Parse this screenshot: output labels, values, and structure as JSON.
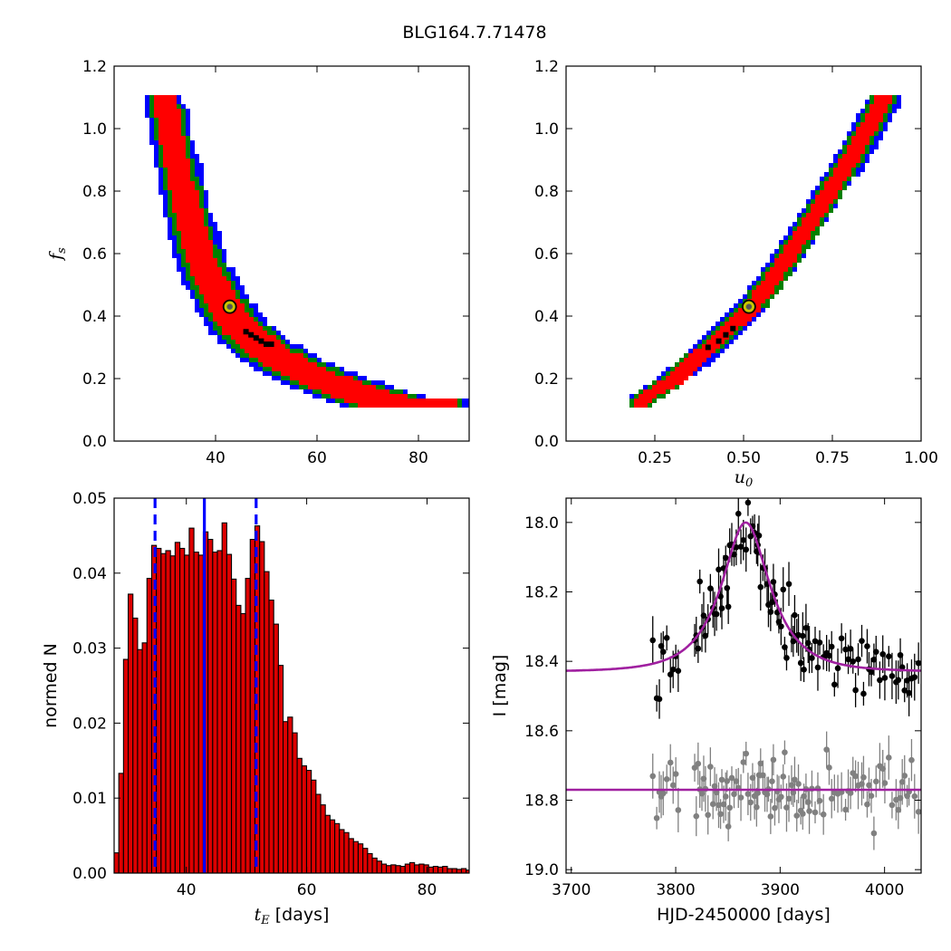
{
  "figure_title": "BLG164.7.71478",
  "colors": {
    "blue": "#0000ff",
    "green": "#008000",
    "red": "#ff0000",
    "black": "#000000",
    "bar_fill": "#dd0000",
    "marker_yellow": "#c8c800",
    "model_line": "#a020a0",
    "baseline_points": "#808080"
  },
  "chart_data": [
    {
      "id": "tE_vs_fs",
      "type": "heatmap",
      "xlabel": "",
      "ylabel": "f_s",
      "ylabel_math": {
        "main": "f",
        "sub": "s"
      },
      "xlim": [
        20,
        90
      ],
      "ylim": [
        0.0,
        1.2
      ],
      "xticks": [
        40,
        60,
        80
      ],
      "yticks": [
        0.0,
        0.2,
        0.4,
        0.6,
        0.8,
        1.0,
        1.2
      ],
      "yticklabels": [
        "0.0",
        "0.2",
        "0.4",
        "0.6",
        "0.8",
        "1.0",
        "1.2"
      ],
      "confidence_bands": [
        {
          "color": "blue",
          "width": [
            3.5,
            9
          ]
        },
        {
          "color": "green",
          "width": [
            2.6,
            7
          ]
        },
        {
          "color": "red",
          "width": [
            1.8,
            5
          ]
        }
      ],
      "ridge": [
        [
          30,
          1.1
        ],
        [
          32,
          0.95
        ],
        [
          35,
          0.72
        ],
        [
          38,
          0.56
        ],
        [
          42,
          0.44
        ],
        [
          45,
          0.37
        ],
        [
          50,
          0.3
        ],
        [
          55,
          0.25
        ],
        [
          60,
          0.21
        ],
        [
          65,
          0.18
        ],
        [
          70,
          0.15
        ],
        [
          75,
          0.13
        ],
        [
          82,
          0.13
        ]
      ],
      "best_cells": [
        [
          46,
          0.35
        ],
        [
          48,
          0.33
        ],
        [
          49,
          0.32
        ],
        [
          50,
          0.31
        ],
        [
          51,
          0.31
        ],
        [
          47,
          0.34
        ]
      ],
      "best_fit": {
        "x": 42.8,
        "y": 0.43
      }
    },
    {
      "id": "u0_vs_fs",
      "type": "heatmap",
      "xlabel": "u_0",
      "xlabel_math": {
        "main": "u",
        "sub": "0"
      },
      "ylabel": "",
      "xlim": [
        0.0,
        1.0
      ],
      "ylim": [
        0.0,
        1.2
      ],
      "xticks": [
        0.25,
        0.5,
        0.75,
        1.0
      ],
      "xticklabels": [
        "0.25",
        "0.50",
        "0.75",
        "1.00"
      ],
      "yticks": [
        0.0,
        0.2,
        0.4,
        0.6,
        0.8,
        1.0,
        1.2
      ],
      "yticklabels": [
        "0.0",
        "0.2",
        "0.4",
        "0.6",
        "0.8",
        "1.0",
        "1.2"
      ],
      "confidence_bands": [
        {
          "color": "blue",
          "width": [
            0.03,
            0.04
          ]
        },
        {
          "color": "green",
          "width": [
            0.022,
            0.03
          ]
        },
        {
          "color": "red",
          "width": [
            0.012,
            0.018
          ]
        }
      ],
      "ridge": [
        [
          0.21,
          0.13
        ],
        [
          0.3,
          0.2
        ],
        [
          0.4,
          0.3
        ],
        [
          0.52,
          0.43
        ],
        [
          0.6,
          0.55
        ],
        [
          0.7,
          0.72
        ],
        [
          0.8,
          0.9
        ],
        [
          0.9,
          1.1
        ]
      ],
      "best_cells": [
        [
          0.4,
          0.3
        ],
        [
          0.43,
          0.32
        ],
        [
          0.45,
          0.34
        ],
        [
          0.47,
          0.36
        ]
      ],
      "best_fit": {
        "x": 0.515,
        "y": 0.43
      }
    },
    {
      "id": "tE_histogram",
      "type": "bar",
      "xlabel": "t_E [days]",
      "xlabel_math": {
        "main": "t",
        "sub": "E",
        "rest": " [days]"
      },
      "ylabel": "normed N",
      "xlim": [
        28,
        87
      ],
      "ylim": [
        0.0,
        0.05
      ],
      "xticks": [
        40,
        60,
        80
      ],
      "yticks": [
        0.0,
        0.01,
        0.02,
        0.03,
        0.04,
        0.05
      ],
      "yticklabels": [
        "0.00",
        "0.01",
        "0.02",
        "0.03",
        "0.04",
        "0.05"
      ],
      "bin_start": 28,
      "bin_width": 0.78,
      "values": [
        0.0027,
        0.0133,
        0.0285,
        0.0372,
        0.034,
        0.0298,
        0.0307,
        0.0393,
        0.0437,
        0.0433,
        0.0426,
        0.043,
        0.0423,
        0.0441,
        0.0433,
        0.0424,
        0.046,
        0.0428,
        0.0424,
        0.0455,
        0.0445,
        0.0428,
        0.043,
        0.0467,
        0.0425,
        0.0392,
        0.0357,
        0.0346,
        0.0393,
        0.0445,
        0.0463,
        0.0442,
        0.0402,
        0.0364,
        0.0332,
        0.0277,
        0.0202,
        0.0208,
        0.0187,
        0.0153,
        0.0143,
        0.0137,
        0.0124,
        0.0105,
        0.0091,
        0.0077,
        0.0071,
        0.0066,
        0.0058,
        0.0054,
        0.0046,
        0.0042,
        0.0039,
        0.0033,
        0.0026,
        0.002,
        0.0016,
        0.0012,
        0.001,
        0.0011,
        0.001,
        0.0009,
        0.0012,
        0.0014,
        0.0011,
        0.0012,
        0.0011,
        0.0008,
        0.0009,
        0.0008,
        0.0009,
        0.0006,
        0.0006,
        0.0005,
        0.0006,
        0.0004
      ],
      "vlines": [
        {
          "x": 34.8,
          "style": "dashed",
          "color": "blue"
        },
        {
          "x": 43.0,
          "style": "solid",
          "color": "blue"
        },
        {
          "x": 51.6,
          "style": "dashed",
          "color": "blue"
        }
      ]
    },
    {
      "id": "light_curve",
      "type": "scatter",
      "xlabel": "HJD-2450000 [days]",
      "ylabel": "I [mag]",
      "xlim": [
        3695,
        4035
      ],
      "ylim": [
        19.01,
        17.93
      ],
      "y_inverted": true,
      "xticks": [
        3700,
        3800,
        3900,
        4000
      ],
      "yticks": [
        18.0,
        18.2,
        18.4,
        18.6,
        18.8,
        19.0
      ],
      "yticklabels": [
        "18.0",
        "18.2",
        "18.4",
        "18.6",
        "18.8",
        "19.0"
      ],
      "model": {
        "t0": 3867,
        "tE": 43,
        "u0": 0.515,
        "fs": 0.43,
        "baseline": 18.43
      },
      "residual_baseline": 18.77,
      "obs_range": [
        3775,
        4032
      ]
    }
  ]
}
